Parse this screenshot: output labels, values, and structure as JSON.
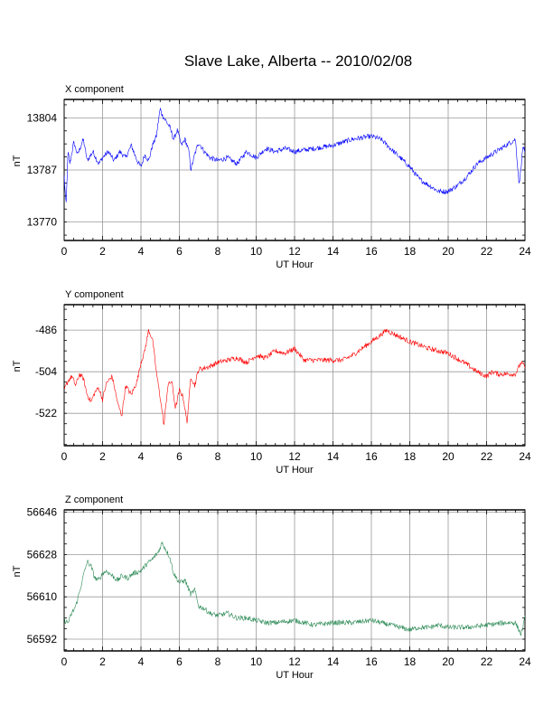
{
  "title": "Slave Lake, Alberta -- 2010/02/08",
  "chart_data": [
    {
      "type": "line",
      "title": "X component",
      "xlabel": "UT Hour",
      "ylabel": "nT",
      "xlim": [
        0,
        24
      ],
      "ylim": [
        13764,
        13810
      ],
      "xticks": [
        0,
        2,
        4,
        6,
        8,
        10,
        12,
        14,
        16,
        18,
        20,
        22,
        24
      ],
      "yticks": [
        13770,
        13787,
        13804
      ],
      "grid": true,
      "color": "#0000ff",
      "series": [
        {
          "x": [
            0,
            0.1,
            0.2,
            0.3,
            0.5,
            0.7,
            1.0,
            1.2,
            1.5,
            1.8,
            2.0,
            2.3,
            2.6,
            2.9,
            3.2,
            3.5,
            3.8,
            4.0,
            4.2,
            4.4,
            4.6,
            4.8,
            5.0,
            5.1,
            5.3,
            5.5,
            5.7,
            5.9,
            6.1,
            6.3,
            6.5,
            6.6,
            6.8,
            7.0,
            7.3,
            7.6,
            8.0,
            8.5,
            9.0,
            9.5,
            10.0,
            10.5,
            11.0,
            11.5,
            12.0,
            13.0,
            14.0,
            15.0,
            16.0,
            16.5,
            17.0,
            17.5,
            18.0,
            18.5,
            19.0,
            19.5,
            20.0,
            20.5,
            21.0,
            21.5,
            22.0,
            22.5,
            23.0,
            23.5,
            23.7,
            23.9,
            24.0
          ],
          "y": [
            13785,
            13775,
            13793,
            13789,
            13796,
            13792,
            13797,
            13790,
            13793,
            13789,
            13791,
            13793,
            13790,
            13793,
            13791,
            13795,
            13790,
            13788,
            13792,
            13790,
            13795,
            13798,
            13807,
            13805,
            13803,
            13801,
            13797,
            13800,
            13795,
            13797,
            13793,
            13787,
            13792,
            13796,
            13793,
            13791,
            13790,
            13791,
            13789,
            13793,
            13791,
            13794,
            13793,
            13794,
            13793,
            13794,
            13795,
            13797,
            13798,
            13797,
            13794,
            13791,
            13788,
            13784,
            13782,
            13780,
            13780,
            13782,
            13785,
            13789,
            13791,
            13793,
            13795,
            13797,
            13782,
            13795,
            13792
          ]
        }
      ]
    },
    {
      "type": "line",
      "title": "Y component",
      "xlabel": "UT Hour",
      "ylabel": "nT",
      "xlim": [
        0,
        24
      ],
      "ylim": [
        -536,
        -475
      ],
      "xticks": [
        0,
        2,
        4,
        6,
        8,
        10,
        12,
        14,
        16,
        18,
        20,
        22,
        24
      ],
      "yticks": [
        -486,
        -504,
        -522
      ],
      "grid": true,
      "color": "#ff0000",
      "series": [
        {
          "x": [
            0,
            0.2,
            0.4,
            0.6,
            0.8,
            1.0,
            1.2,
            1.4,
            1.6,
            1.8,
            2.0,
            2.2,
            2.5,
            2.8,
            3.0,
            3.2,
            3.5,
            3.8,
            4.0,
            4.2,
            4.4,
            4.6,
            4.8,
            5.0,
            5.2,
            5.4,
            5.6,
            5.8,
            6.0,
            6.2,
            6.4,
            6.6,
            6.8,
            7.0,
            7.5,
            8.0,
            8.5,
            9.0,
            9.5,
            10.0,
            10.5,
            11.0,
            11.5,
            12.0,
            12.5,
            13.0,
            13.5,
            14.0,
            14.5,
            15.0,
            15.5,
            16.0,
            16.5,
            16.8,
            17.0,
            17.5,
            18.0,
            19.0,
            20.0,
            21.0,
            21.5,
            22.0,
            22.3,
            22.6,
            23.0,
            23.5,
            23.8,
            24.0
          ],
          "y": [
            -512,
            -508,
            -506,
            -510,
            -505,
            -507,
            -514,
            -517,
            -513,
            -511,
            -516,
            -509,
            -506,
            -518,
            -523,
            -510,
            -514,
            -508,
            -500,
            -495,
            -486,
            -490,
            -504,
            -515,
            -527,
            -510,
            -508,
            -520,
            -512,
            -515,
            -526,
            -506,
            -510,
            -503,
            -502,
            -500,
            -499,
            -498,
            -500,
            -497,
            -498,
            -495,
            -496,
            -494,
            -499,
            -499,
            -499,
            -499,
            -499,
            -497,
            -494,
            -491,
            -488,
            -486,
            -487,
            -489,
            -491,
            -494,
            -496,
            -501,
            -504,
            -506,
            -504,
            -505,
            -505,
            -505,
            -500,
            -502
          ]
        }
      ]
    },
    {
      "type": "line",
      "title": "Z component",
      "xlabel": "UT Hour",
      "ylabel": "nT",
      "xlim": [
        0,
        24
      ],
      "ylim": [
        56587,
        56647
      ],
      "xticks": [
        0,
        2,
        4,
        6,
        8,
        10,
        12,
        14,
        16,
        18,
        20,
        22,
        24
      ],
      "yticks": [
        56592,
        56610,
        56628,
        56646
      ],
      "grid": true,
      "color": "#2e8b57",
      "series": [
        {
          "x": [
            0,
            0.2,
            0.4,
            0.6,
            0.8,
            1.0,
            1.2,
            1.4,
            1.6,
            1.8,
            2.0,
            2.2,
            2.5,
            2.8,
            3.0,
            3.3,
            3.6,
            4.0,
            4.3,
            4.6,
            4.9,
            5.1,
            5.3,
            5.5,
            5.7,
            6.0,
            6.3,
            6.6,
            6.8,
            7.0,
            7.3,
            7.6,
            8.0,
            8.5,
            9.0,
            9.5,
            10.0,
            10.5,
            11.0,
            12.0,
            13.0,
            14.0,
            15.0,
            16.0,
            17.0,
            17.5,
            18.0,
            18.5,
            19.0,
            19.5,
            20.0,
            21.0,
            22.0,
            23.0,
            23.5,
            23.8,
            24.0
          ],
          "y": [
            56600,
            56599,
            56603,
            56606,
            56612,
            56619,
            56625,
            56623,
            56618,
            56617,
            56620,
            56621,
            56619,
            56617,
            56619,
            56618,
            56620,
            56621,
            56624,
            56626,
            56629,
            56633,
            56630,
            56627,
            56620,
            56616,
            56617,
            56611,
            56613,
            56606,
            56605,
            56603,
            56602,
            56603,
            56601,
            56601,
            56600,
            56599,
            56599,
            56600,
            56598,
            56599,
            56599,
            56600,
            56598,
            56597,
            56596,
            56597,
            56597,
            56598,
            56597,
            56597,
            56598,
            56599,
            56599,
            56594,
            56601
          ]
        }
      ]
    }
  ]
}
